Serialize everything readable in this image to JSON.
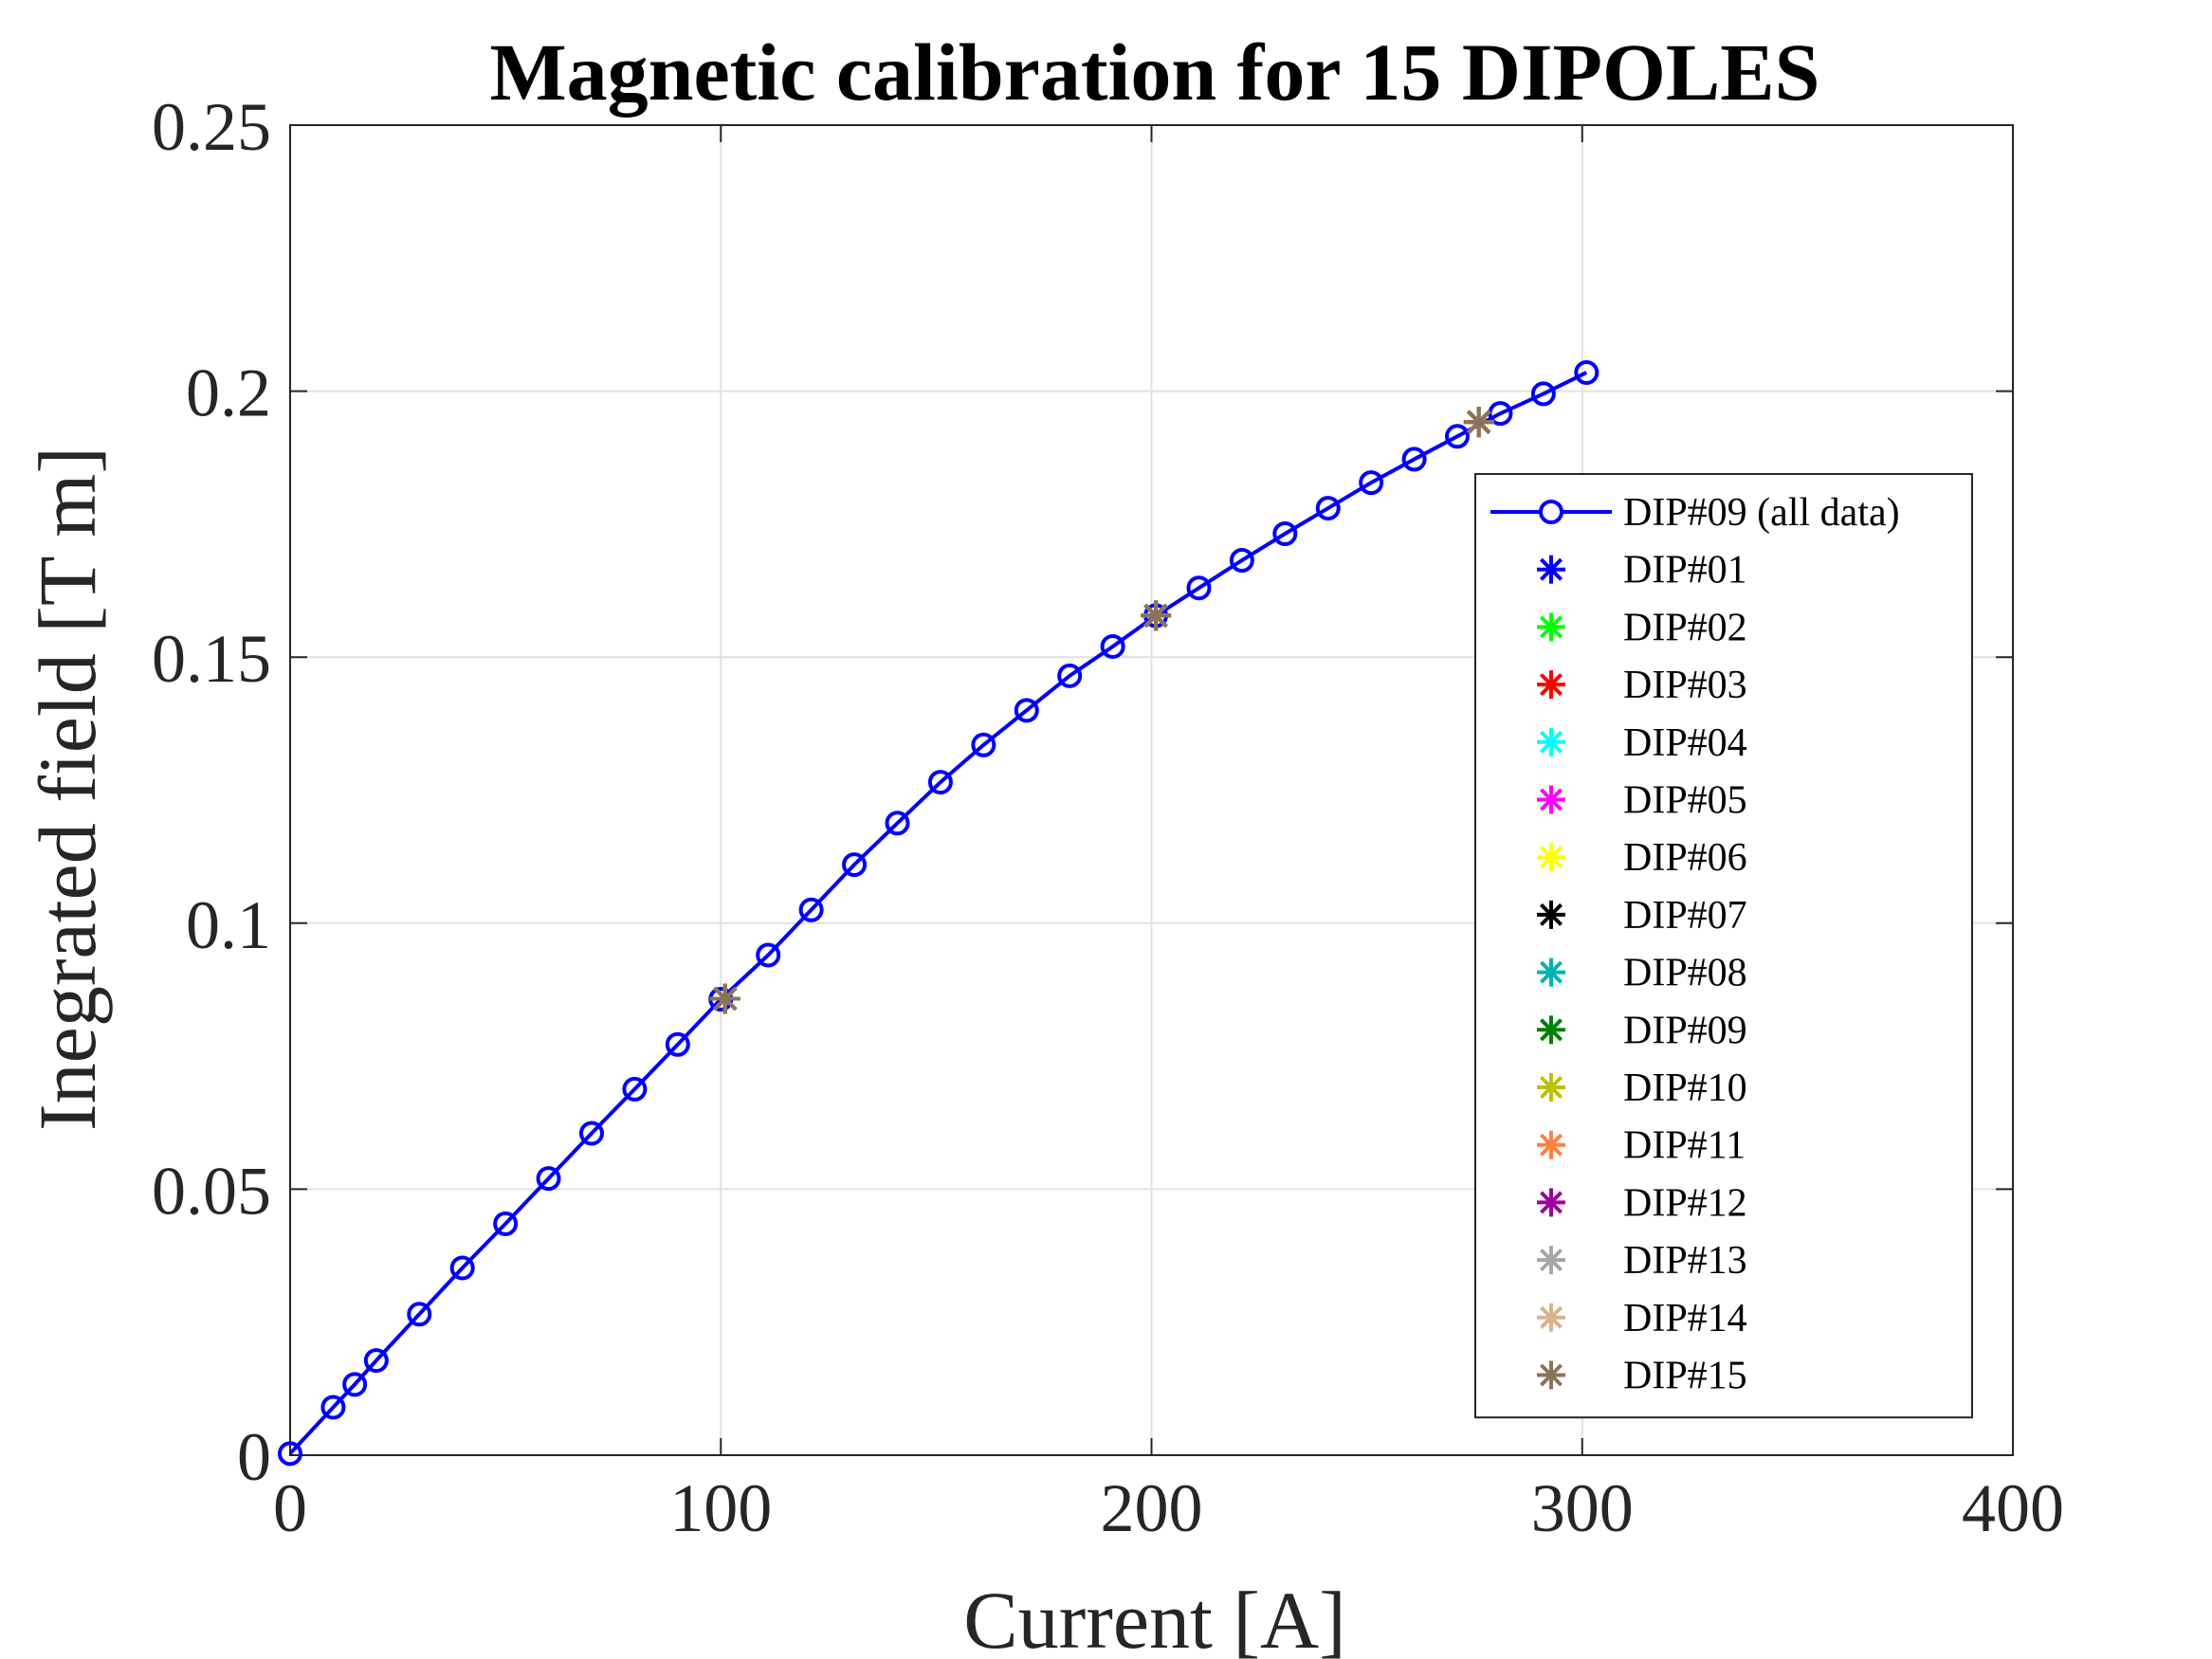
{
  "chart_data": {
    "type": "line",
    "title": "Magnetic calibration for 15 DIPOLES",
    "xlabel": "Current [A]",
    "ylabel": "Inegrated field [T m]",
    "xlim": [
      0,
      400
    ],
    "ylim": [
      0,
      0.25
    ],
    "xticks": [
      0,
      100,
      200,
      300,
      400
    ],
    "xtick_labels": [
      "0",
      "100",
      "200",
      "300",
      "400"
    ],
    "yticks": [
      0,
      0.05,
      0.1,
      0.15,
      0.2,
      0.25
    ],
    "ytick_labels": [
      "0",
      "0.05",
      "0.1",
      "0.15",
      "0.2",
      "0.25"
    ],
    "grid": true,
    "legend_position": "right",
    "series": [
      {
        "name": "DIP#09 (all data)",
        "style": "line-circle",
        "color": "#0000ff",
        "x": [
          0,
          10,
          15,
          20,
          30,
          40,
          50,
          60,
          70,
          80,
          90,
          100,
          111,
          121,
          131,
          141,
          151,
          161,
          171,
          181,
          191,
          201,
          211,
          221,
          231,
          241,
          251,
          261,
          271,
          281,
          291,
          301
        ],
        "y": [
          0.0003,
          0.009,
          0.0133,
          0.0178,
          0.0265,
          0.0352,
          0.0435,
          0.052,
          0.0605,
          0.0688,
          0.0772,
          0.0857,
          0.094,
          0.1025,
          0.111,
          0.1188,
          0.1265,
          0.1335,
          0.14,
          0.1465,
          0.152,
          0.1578,
          0.163,
          0.1682,
          0.1732,
          0.178,
          0.1828,
          0.1872,
          0.1915,
          0.1958,
          0.1995,
          0.2035
        ]
      },
      {
        "name": "DIP#01",
        "style": "star",
        "color": "#0000ff",
        "x": [
          101,
          201,
          276
        ],
        "y": [
          0.0858,
          0.1578,
          0.1942
        ]
      },
      {
        "name": "DIP#02",
        "style": "star",
        "color": "#00ff00",
        "x": [
          101,
          201,
          276
        ],
        "y": [
          0.0858,
          0.1578,
          0.1942
        ]
      },
      {
        "name": "DIP#03",
        "style": "star",
        "color": "#ff0000",
        "x": [
          101,
          201,
          276
        ],
        "y": [
          0.0858,
          0.1578,
          0.1942
        ]
      },
      {
        "name": "DIP#04",
        "style": "star",
        "color": "#00ffff",
        "x": [
          101,
          201,
          276
        ],
        "y": [
          0.0858,
          0.1578,
          0.1942
        ]
      },
      {
        "name": "DIP#05",
        "style": "star",
        "color": "#ff00ff",
        "x": [
          101,
          201,
          276
        ],
        "y": [
          0.0858,
          0.1578,
          0.1942
        ]
      },
      {
        "name": "DIP#06",
        "style": "star",
        "color": "#ffff00",
        "x": [
          101,
          201,
          276
        ],
        "y": [
          0.0858,
          0.1578,
          0.1942
        ]
      },
      {
        "name": "DIP#07",
        "style": "star",
        "color": "#000000",
        "x": [
          101,
          201,
          276
        ],
        "y": [
          0.0858,
          0.1578,
          0.1942
        ]
      },
      {
        "name": "DIP#08",
        "style": "star",
        "color": "#00b3b3",
        "x": [
          101,
          201,
          276
        ],
        "y": [
          0.0858,
          0.1578,
          0.1942
        ]
      },
      {
        "name": "DIP#09",
        "style": "star",
        "color": "#008000",
        "x": [
          101,
          201,
          276
        ],
        "y": [
          0.0858,
          0.1578,
          0.1942
        ]
      },
      {
        "name": "DIP#10",
        "style": "star",
        "color": "#bfbf00",
        "x": [
          101,
          201,
          276
        ],
        "y": [
          0.0858,
          0.1578,
          0.1942
        ]
      },
      {
        "name": "DIP#11",
        "style": "star",
        "color": "#ff8040",
        "x": [
          101,
          201,
          276
        ],
        "y": [
          0.0858,
          0.1578,
          0.1942
        ]
      },
      {
        "name": "DIP#12",
        "style": "star",
        "color": "#a000a0",
        "x": [
          101,
          201,
          276
        ],
        "y": [
          0.0858,
          0.1578,
          0.1942
        ]
      },
      {
        "name": "DIP#13",
        "style": "star",
        "color": "#a6a6a6",
        "x": [
          101,
          201,
          276
        ],
        "y": [
          0.0858,
          0.1578,
          0.1942
        ]
      },
      {
        "name": "DIP#14",
        "style": "star",
        "color": "#d9b38c",
        "x": [
          101,
          201,
          276
        ],
        "y": [
          0.0858,
          0.1578,
          0.1942
        ]
      },
      {
        "name": "DIP#15",
        "style": "star",
        "color": "#8c7358",
        "x": [
          101,
          201,
          276
        ],
        "y": [
          0.0858,
          0.1578,
          0.1942
        ]
      }
    ]
  }
}
